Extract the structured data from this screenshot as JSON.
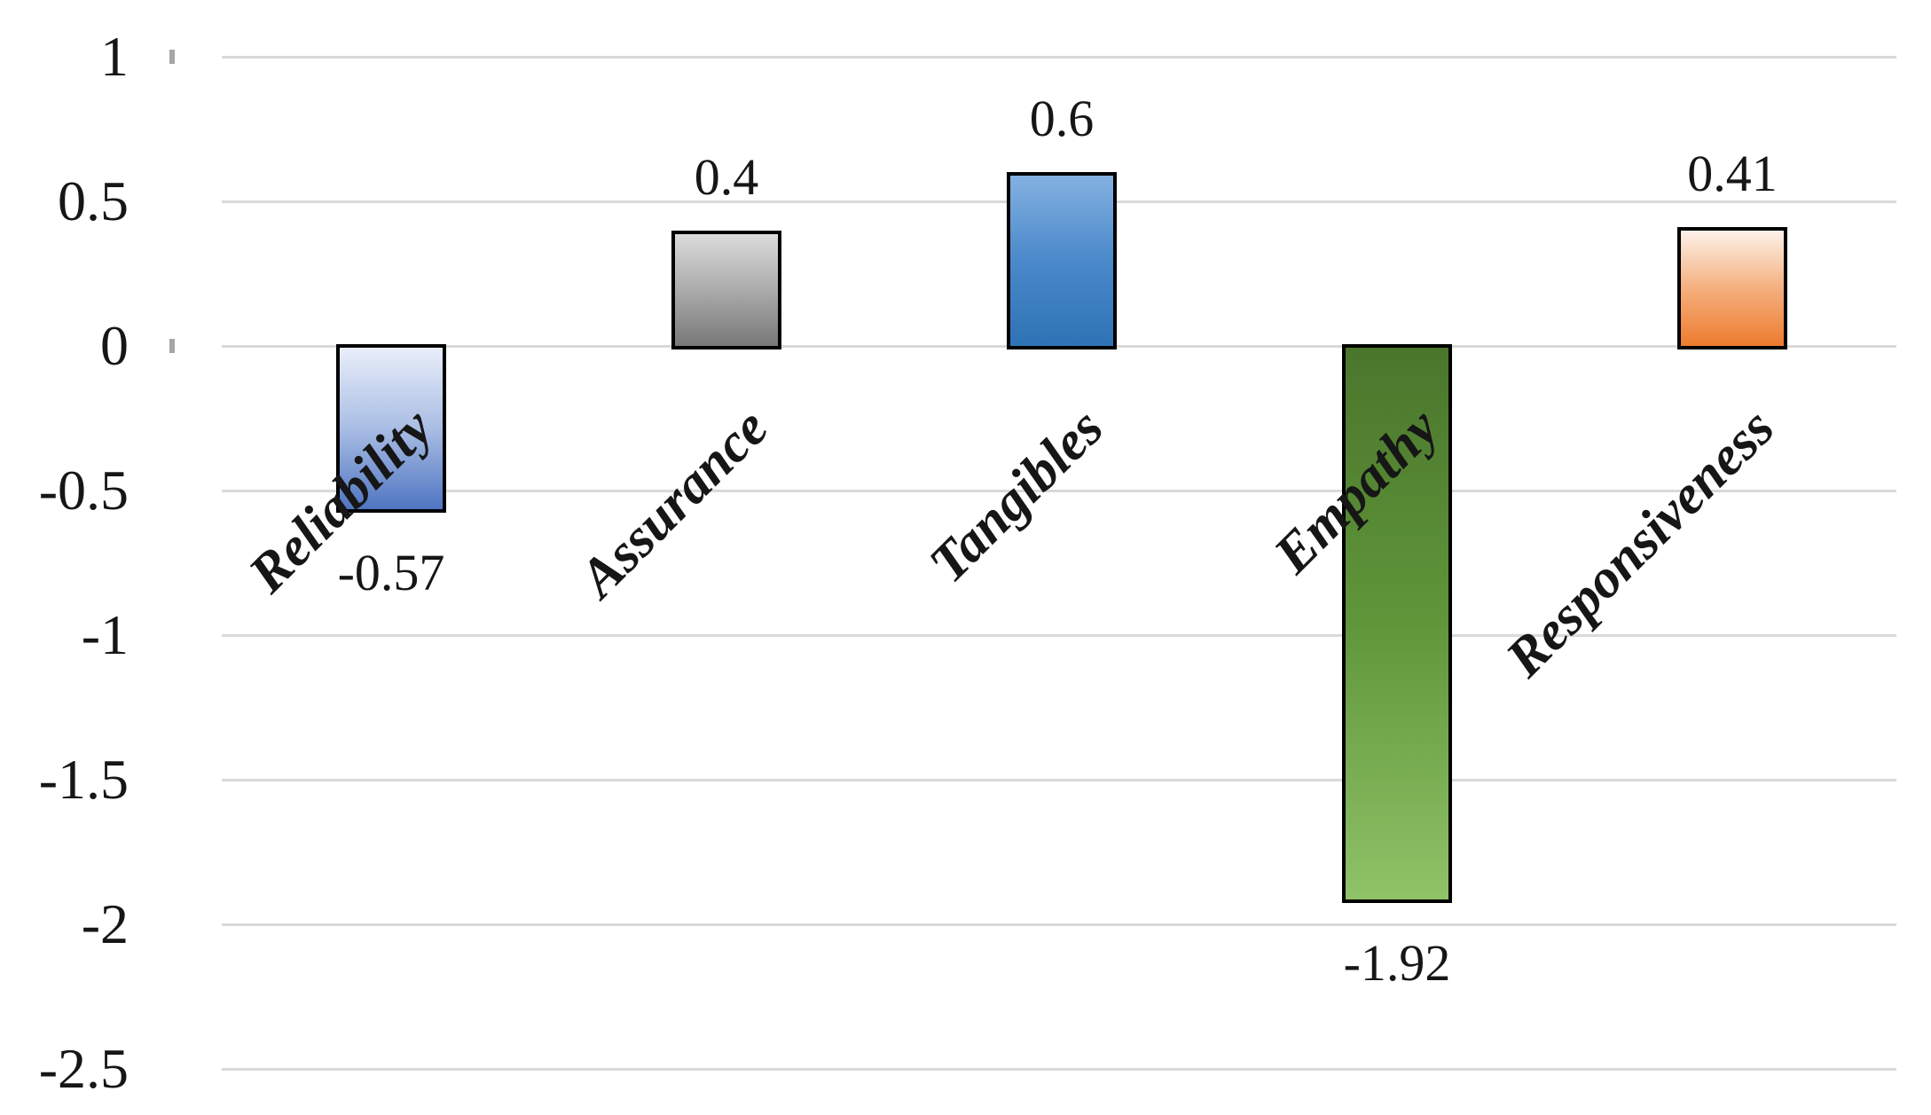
{
  "chart_data": {
    "type": "bar",
    "title": "",
    "xlabel": "",
    "ylabel": "",
    "legend": "none",
    "grid": true,
    "categories": [
      "Reliability",
      "Assurance",
      "Tangibles",
      "Empathy",
      "Responsiveness"
    ],
    "values": [
      -0.57,
      0.4,
      0.6,
      -1.92,
      0.41
    ],
    "data_labels": [
      "-0.57",
      "0.4",
      "0.6",
      "-1.92",
      "0.41"
    ],
    "y_axis": {
      "min": -2.5,
      "max": 1,
      "step": 0.5,
      "ticks": [
        {
          "value": 1,
          "label": "1"
        },
        {
          "value": 0.5,
          "label": "0.5"
        },
        {
          "value": 0,
          "label": "0"
        },
        {
          "value": -0.5,
          "label": "-0.5"
        },
        {
          "value": -1,
          "label": "-1"
        },
        {
          "value": -1.5,
          "label": "-1.5"
        },
        {
          "value": -2,
          "label": "-2"
        },
        {
          "value": -2.5,
          "label": "-2.5"
        }
      ],
      "small_tick_values": [
        1,
        0
      ]
    },
    "bar_styles": [
      {
        "name": "blue-light-gradient",
        "stops": [
          "#e9eef9",
          "#a9bde4",
          "#4f75c2"
        ]
      },
      {
        "name": "gray-gradient",
        "stops": [
          "#dcdcdc",
          "#ababab",
          "#787878"
        ]
      },
      {
        "name": "blue-strong-gradient",
        "stops": [
          "#84b1e1",
          "#4a89ca",
          "#2e73b5"
        ]
      },
      {
        "name": "green-gradient",
        "stops": [
          "#4a762c",
          "#60963a",
          "#90c268"
        ]
      },
      {
        "name": "orange-gradient",
        "stops": [
          "#fdf2ea",
          "#f5af7e",
          "#ec7c2e"
        ]
      }
    ],
    "colors": {
      "background": "#ffffff",
      "gridline": "#d9d9d9",
      "small_tick": "#a6a6a6",
      "text": "#161616",
      "bar_border": "#000000"
    }
  }
}
